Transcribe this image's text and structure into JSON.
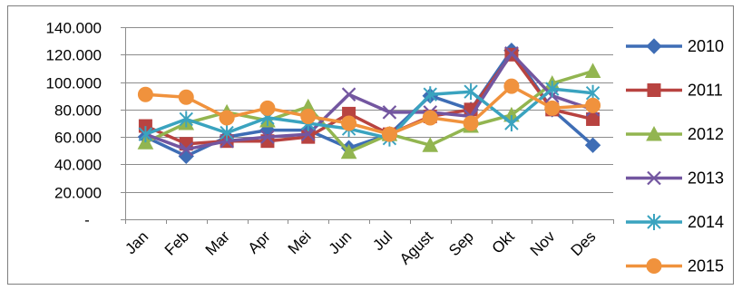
{
  "chart_data": {
    "type": "line",
    "title": "",
    "xlabel": "",
    "ylabel": "",
    "categories": [
      "Jan",
      "Feb",
      "Mar",
      "Apr",
      "Mei",
      "Jun",
      "Jul",
      "Agust",
      "Sep",
      "Okt",
      "Nov",
      "Des"
    ],
    "ylim": [
      0,
      140000
    ],
    "yticks": [
      0,
      20000,
      40000,
      60000,
      80000,
      100000,
      120000,
      140000
    ],
    "ytick_labels": [
      "-",
      "20.000",
      "40.000",
      "60.000",
      "80.000",
      "100.000",
      "120.000",
      "140.000"
    ],
    "grid": true,
    "legend_position": "right",
    "series": [
      {
        "name": "2010",
        "color": "#3E6DB5",
        "marker": "diamond",
        "values": [
          60000,
          46000,
          60000,
          65000,
          65000,
          52000,
          62000,
          90000,
          80000,
          123000,
          80000,
          54000
        ]
      },
      {
        "name": "2011",
        "color": "#B84340",
        "marker": "square",
        "values": [
          68000,
          55000,
          57000,
          57000,
          60000,
          77000,
          62000,
          75000,
          80000,
          120000,
          80000,
          73000
        ]
      },
      {
        "name": "2012",
        "color": "#92B550",
        "marker": "triangle",
        "values": [
          56000,
          70000,
          78000,
          72000,
          82000,
          49000,
          62000,
          54000,
          68000,
          76000,
          99000,
          108000
        ]
      },
      {
        "name": "2013",
        "color": "#7356A0",
        "marker": "x",
        "values": [
          62000,
          51000,
          57000,
          60000,
          62000,
          91000,
          78000,
          78000,
          75000,
          121000,
          90000,
          80000
        ]
      },
      {
        "name": "2014",
        "color": "#3AA3BF",
        "marker": "star",
        "values": [
          62000,
          73000,
          63000,
          74000,
          70000,
          66000,
          59000,
          91000,
          93000,
          70000,
          95000,
          92000
        ]
      },
      {
        "name": "2015",
        "color": "#F0923D",
        "marker": "circle",
        "values": [
          91000,
          89000,
          74000,
          81000,
          75000,
          70000,
          62000,
          74000,
          70000,
          97000,
          81000,
          83000
        ]
      }
    ]
  }
}
